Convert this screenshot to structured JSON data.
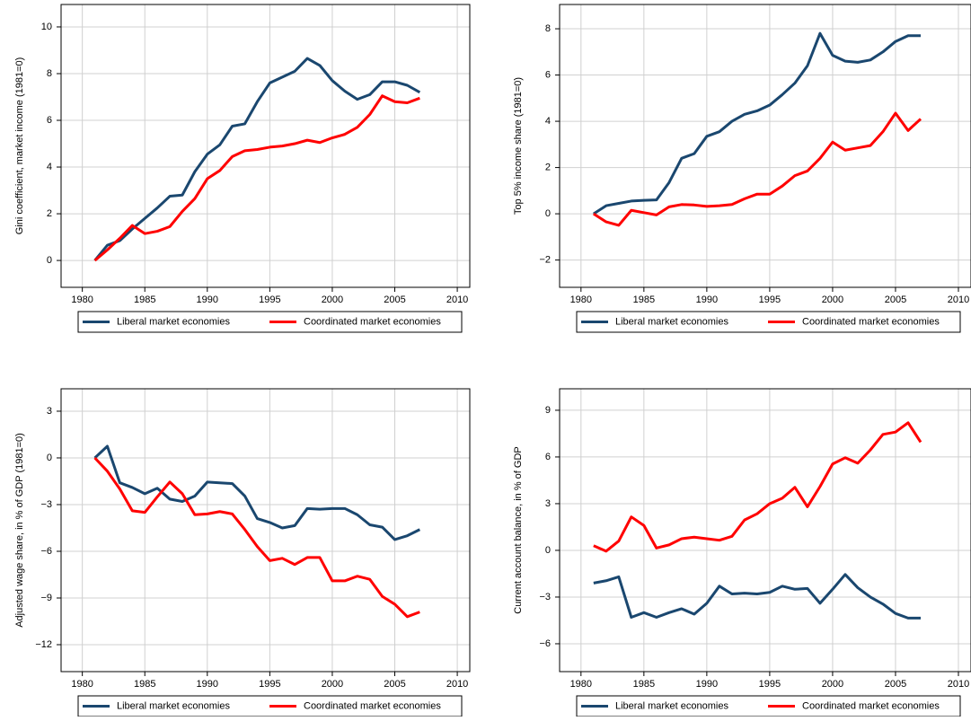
{
  "chart_data": [
    {
      "type": "line",
      "ylabel": "Gini coefficient, market income (1981=0)",
      "x": [
        1981,
        1982,
        1983,
        1984,
        1985,
        1986,
        1987,
        1988,
        1989,
        1990,
        1991,
        1992,
        1993,
        1994,
        1995,
        1996,
        1997,
        1998,
        1999,
        2000,
        2001,
        2002,
        2003,
        2004,
        2005,
        2006,
        2007
      ],
      "series": [
        {
          "name": "Liberal market economies",
          "color": "#1a476f",
          "values": [
            0,
            0.65,
            0.85,
            1.35,
            1.8,
            2.25,
            2.75,
            2.8,
            3.8,
            4.55,
            4.95,
            5.75,
            5.85,
            6.8,
            7.6,
            7.85,
            8.1,
            8.65,
            8.35,
            7.7,
            7.25,
            6.9,
            7.1,
            7.65,
            7.65,
            7.5,
            7.2
          ]
        },
        {
          "name": "Coordinated market economies",
          "color": "#ff0000",
          "values": [
            0,
            0.45,
            0.95,
            1.5,
            1.15,
            1.25,
            1.45,
            2.1,
            2.65,
            3.5,
            3.85,
            4.45,
            4.7,
            4.75,
            4.85,
            4.9,
            5.0,
            5.15,
            5.05,
            5.25,
            5.4,
            5.7,
            6.25,
            7.05,
            6.8,
            6.75,
            6.95
          ]
        }
      ],
      "xlim": [
        1978.3,
        2011
      ],
      "xticks": [
        1980,
        1985,
        1990,
        1995,
        2000,
        2005,
        2010
      ],
      "ylim": [
        -1.15,
        10.96
      ],
      "yticks": [
        0,
        2,
        4,
        6,
        8,
        10
      ],
      "grid": true,
      "legend": "bottom"
    },
    {
      "type": "line",
      "ylabel": "Top 5% income share (1981=0)",
      "x": [
        1981,
        1982,
        1983,
        1984,
        1985,
        1986,
        1987,
        1988,
        1989,
        1990,
        1991,
        1992,
        1993,
        1994,
        1995,
        1996,
        1997,
        1998,
        1999,
        2000,
        2001,
        2002,
        2003,
        2004,
        2005,
        2006,
        2007
      ],
      "series": [
        {
          "name": "Liberal market economies",
          "color": "#1a476f",
          "values": [
            0,
            0.35,
            0.45,
            0.55,
            0.58,
            0.6,
            1.35,
            2.4,
            2.6,
            3.35,
            3.55,
            4.0,
            4.3,
            4.45,
            4.7,
            5.15,
            5.65,
            6.4,
            7.8,
            6.85,
            6.6,
            6.55,
            6.65,
            7.0,
            7.45,
            7.7,
            7.7
          ]
        },
        {
          "name": "Coordinated market economies",
          "color": "#ff0000",
          "values": [
            0,
            -0.35,
            -0.5,
            0.15,
            0.05,
            -0.05,
            0.3,
            0.4,
            0.38,
            0.32,
            0.35,
            0.4,
            0.65,
            0.85,
            0.85,
            1.2,
            1.65,
            1.85,
            2.4,
            3.1,
            2.75,
            2.85,
            2.95,
            3.55,
            4.35,
            3.6,
            4.1
          ]
        }
      ],
      "xlim": [
        1978.3,
        2011
      ],
      "xticks": [
        1980,
        1985,
        1990,
        1995,
        2000,
        2005,
        2010
      ],
      "ylim": [
        -3.18,
        9.05
      ],
      "yticks": [
        {
          "value": -2,
          "label": "−2"
        },
        0,
        2,
        4,
        6,
        8
      ],
      "grid": true,
      "legend": "bottom"
    },
    {
      "type": "line",
      "ylabel": "Adjusted wage share, in % of GDP (1981=0)",
      "x": [
        1981,
        1982,
        1983,
        1984,
        1985,
        1986,
        1987,
        1988,
        1989,
        1990,
        1991,
        1992,
        1993,
        1994,
        1995,
        1996,
        1997,
        1998,
        1999,
        2000,
        2001,
        2002,
        2003,
        2004,
        2005,
        2006,
        2007
      ],
      "series": [
        {
          "name": "Liberal market economies",
          "color": "#1a476f",
          "values": [
            0,
            0.75,
            -1.6,
            -1.9,
            -2.3,
            -1.95,
            -2.65,
            -2.8,
            -2.45,
            -1.55,
            -1.6,
            -1.65,
            -2.45,
            -3.9,
            -4.15,
            -4.5,
            -4.35,
            -3.25,
            -3.3,
            -3.25,
            -3.25,
            -3.65,
            -4.3,
            -4.45,
            -5.25,
            -5.0,
            -4.6
          ]
        },
        {
          "name": "Coordinated market economies",
          "color": "#ff0000",
          "values": [
            0,
            -0.85,
            -2.0,
            -3.4,
            -3.5,
            -2.5,
            -1.55,
            -2.3,
            -3.65,
            -3.6,
            -3.45,
            -3.6,
            -4.6,
            -5.7,
            -6.6,
            -6.45,
            -6.85,
            -6.4,
            -6.4,
            -7.9,
            -7.9,
            -7.6,
            -7.8,
            -8.9,
            -9.4,
            -10.2,
            -9.9
          ]
        }
      ],
      "xlim": [
        1978.3,
        2011
      ],
      "xticks": [
        1980,
        1985,
        1990,
        1995,
        2000,
        2005,
        2010
      ],
      "ylim": [
        -13.73,
        4.44
      ],
      "yticks": [
        {
          "value": -12,
          "label": "−12"
        },
        {
          "value": -9,
          "label": "−9"
        },
        {
          "value": -6,
          "label": "−6"
        },
        {
          "value": -3,
          "label": "−3"
        },
        0,
        3
      ],
      "grid": true,
      "legend": "bottom"
    },
    {
      "type": "line",
      "ylabel": "Current account balance, in % of GDP",
      "x": [
        1981,
        1982,
        1983,
        1984,
        1985,
        1986,
        1987,
        1988,
        1989,
        1990,
        1991,
        1992,
        1993,
        1994,
        1995,
        1996,
        1997,
        1998,
        1999,
        2000,
        2001,
        2002,
        2003,
        2004,
        2005,
        2006,
        2007
      ],
      "series": [
        {
          "name": "Liberal market economies",
          "color": "#1a476f",
          "values": [
            -2.1,
            -1.95,
            -1.7,
            -4.3,
            -4.0,
            -4.3,
            -4.0,
            -3.75,
            -4.1,
            -3.4,
            -2.3,
            -2.8,
            -2.75,
            -2.8,
            -2.7,
            -2.3,
            -2.5,
            -2.45,
            -3.4,
            -2.5,
            -1.55,
            -2.4,
            -3.0,
            -3.45,
            -4.05,
            -4.35,
            -4.35
          ]
        },
        {
          "name": "Coordinated market economies",
          "color": "#ff0000",
          "values": [
            0.3,
            -0.05,
            0.6,
            2.15,
            1.6,
            0.15,
            0.35,
            0.75,
            0.85,
            0.75,
            0.65,
            0.9,
            1.95,
            2.35,
            3.0,
            3.35,
            4.05,
            2.8,
            4.1,
            5.55,
            5.95,
            5.6,
            6.45,
            7.45,
            7.6,
            8.2,
            6.95
          ]
        }
      ],
      "xlim": [
        1978.3,
        2011
      ],
      "xticks": [
        1980,
        1985,
        1990,
        1995,
        2000,
        2005,
        2010
      ],
      "ylim": [
        -7.79,
        10.38
      ],
      "yticks": [
        {
          "value": -6,
          "label": "−6"
        },
        {
          "value": -3,
          "label": "−3"
        },
        0,
        3,
        6,
        9
      ],
      "grid": true,
      "legend": "bottom"
    }
  ]
}
